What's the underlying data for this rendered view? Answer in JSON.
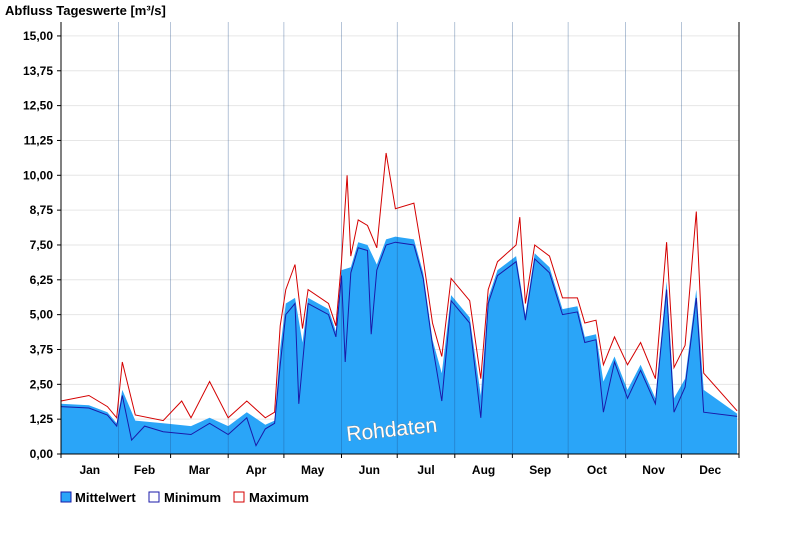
{
  "chart_data": {
    "type": "area",
    "title": "Abfluss Tageswerte [m³/s]",
    "watermark": "Rohdaten",
    "ylim": [
      0,
      15.5
    ],
    "y_ticks": [
      "0,00",
      "1,25",
      "2,50",
      "3,75",
      "5,00",
      "6,25",
      "7,50",
      "8,75",
      "10,00",
      "11,25",
      "12,50",
      "13,75",
      "15,00"
    ],
    "y_tick_values": [
      0,
      1.25,
      2.5,
      3.75,
      5.0,
      6.25,
      7.5,
      8.75,
      10.0,
      11.25,
      12.5,
      13.75,
      15.0
    ],
    "x_labels": [
      "Jan",
      "Feb",
      "Mar",
      "Apr",
      "May",
      "Jun",
      "Jul",
      "Aug",
      "Sep",
      "Oct",
      "Nov",
      "Dec"
    ],
    "days_in_year": 365,
    "colors": {
      "mittelwert_fill": "#2aa5f8",
      "minimum_line": "#1a1aa8",
      "maximum_line": "#d40000",
      "axis": "#000000",
      "grid": "#e6e6e6",
      "month_line": "#1f4f8a"
    },
    "series": [
      {
        "name": "Mittelwert",
        "values": [
          [
            0,
            1.8
          ],
          [
            15,
            1.75
          ],
          [
            25,
            1.5
          ],
          [
            30,
            1.1
          ],
          [
            33,
            2.3
          ],
          [
            40,
            1.2
          ],
          [
            55,
            1.1
          ],
          [
            70,
            1.0
          ],
          [
            80,
            1.3
          ],
          [
            90,
            1.0
          ],
          [
            100,
            1.5
          ],
          [
            110,
            1.05
          ],
          [
            115,
            1.2
          ],
          [
            118,
            3.8
          ],
          [
            121,
            5.4
          ],
          [
            126,
            5.6
          ],
          [
            130,
            4.0
          ],
          [
            133,
            5.6
          ],
          [
            144,
            5.2
          ],
          [
            148,
            4.4
          ],
          [
            151,
            6.6
          ],
          [
            156,
            6.7
          ],
          [
            160,
            7.6
          ],
          [
            165,
            7.5
          ],
          [
            170,
            6.8
          ],
          [
            175,
            7.7
          ],
          [
            180,
            7.8
          ],
          [
            190,
            7.7
          ],
          [
            195,
            6.5
          ],
          [
            200,
            4.1
          ],
          [
            205,
            2.9
          ],
          [
            210,
            5.7
          ],
          [
            220,
            4.9
          ],
          [
            226,
            2.1
          ],
          [
            230,
            5.6
          ],
          [
            235,
            6.6
          ],
          [
            245,
            7.1
          ],
          [
            250,
            5.0
          ],
          [
            255,
            7.2
          ],
          [
            263,
            6.7
          ],
          [
            270,
            5.2
          ],
          [
            278,
            5.3
          ],
          [
            282,
            4.2
          ],
          [
            288,
            4.3
          ],
          [
            292,
            2.6
          ],
          [
            298,
            3.5
          ],
          [
            305,
            2.3
          ],
          [
            312,
            3.2
          ],
          [
            320,
            2.0
          ],
          [
            326,
            6.2
          ],
          [
            330,
            2.0
          ],
          [
            336,
            2.7
          ],
          [
            342,
            5.9
          ],
          [
            346,
            2.3
          ],
          [
            364,
            1.45
          ]
        ]
      },
      {
        "name": "Minimum",
        "values": [
          [
            0,
            1.7
          ],
          [
            15,
            1.65
          ],
          [
            25,
            1.4
          ],
          [
            30,
            1.0
          ],
          [
            33,
            2.1
          ],
          [
            38,
            0.5
          ],
          [
            45,
            1.0
          ],
          [
            55,
            0.8
          ],
          [
            70,
            0.7
          ],
          [
            80,
            1.1
          ],
          [
            90,
            0.7
          ],
          [
            100,
            1.3
          ],
          [
            105,
            0.3
          ],
          [
            110,
            0.9
          ],
          [
            115,
            1.1
          ],
          [
            118,
            3.2
          ],
          [
            121,
            5.0
          ],
          [
            126,
            5.4
          ],
          [
            128,
            1.8
          ],
          [
            133,
            5.4
          ],
          [
            144,
            5.0
          ],
          [
            148,
            4.2
          ],
          [
            151,
            6.4
          ],
          [
            153,
            3.3
          ],
          [
            156,
            6.5
          ],
          [
            160,
            7.4
          ],
          [
            165,
            7.3
          ],
          [
            167,
            4.3
          ],
          [
            170,
            6.6
          ],
          [
            175,
            7.5
          ],
          [
            180,
            7.6
          ],
          [
            190,
            7.5
          ],
          [
            195,
            6.3
          ],
          [
            200,
            3.9
          ],
          [
            205,
            1.9
          ],
          [
            210,
            5.5
          ],
          [
            220,
            4.7
          ],
          [
            226,
            1.3
          ],
          [
            230,
            5.4
          ],
          [
            235,
            6.4
          ],
          [
            245,
            6.9
          ],
          [
            250,
            4.8
          ],
          [
            255,
            7.0
          ],
          [
            263,
            6.5
          ],
          [
            270,
            5.0
          ],
          [
            278,
            5.1
          ],
          [
            282,
            4.0
          ],
          [
            288,
            4.1
          ],
          [
            292,
            1.5
          ],
          [
            298,
            3.3
          ],
          [
            305,
            2.0
          ],
          [
            312,
            3.0
          ],
          [
            320,
            1.8
          ],
          [
            326,
            5.9
          ],
          [
            330,
            1.5
          ],
          [
            336,
            2.4
          ],
          [
            342,
            5.6
          ],
          [
            346,
            1.5
          ],
          [
            364,
            1.35
          ]
        ]
      },
      {
        "name": "Maximum",
        "values": [
          [
            0,
            1.9
          ],
          [
            15,
            2.1
          ],
          [
            25,
            1.7
          ],
          [
            30,
            1.3
          ],
          [
            33,
            3.3
          ],
          [
            40,
            1.4
          ],
          [
            55,
            1.2
          ],
          [
            65,
            1.9
          ],
          [
            70,
            1.3
          ],
          [
            80,
            2.6
          ],
          [
            90,
            1.3
          ],
          [
            100,
            1.9
          ],
          [
            110,
            1.3
          ],
          [
            115,
            1.5
          ],
          [
            118,
            4.6
          ],
          [
            121,
            5.9
          ],
          [
            126,
            6.8
          ],
          [
            130,
            4.5
          ],
          [
            133,
            5.9
          ],
          [
            144,
            5.4
          ],
          [
            148,
            4.6
          ],
          [
            151,
            6.9
          ],
          [
            154,
            10.0
          ],
          [
            156,
            7.1
          ],
          [
            160,
            8.4
          ],
          [
            165,
            8.2
          ],
          [
            170,
            7.4
          ],
          [
            175,
            10.8
          ],
          [
            180,
            8.8
          ],
          [
            190,
            9.0
          ],
          [
            195,
            7.0
          ],
          [
            200,
            4.7
          ],
          [
            205,
            3.5
          ],
          [
            210,
            6.3
          ],
          [
            220,
            5.5
          ],
          [
            226,
            2.7
          ],
          [
            230,
            5.9
          ],
          [
            235,
            6.9
          ],
          [
            245,
            7.5
          ],
          [
            247,
            8.5
          ],
          [
            250,
            5.4
          ],
          [
            255,
            7.5
          ],
          [
            263,
            7.1
          ],
          [
            270,
            5.6
          ],
          [
            278,
            5.6
          ],
          [
            282,
            4.7
          ],
          [
            288,
            4.8
          ],
          [
            292,
            3.2
          ],
          [
            298,
            4.2
          ],
          [
            305,
            3.2
          ],
          [
            312,
            4.0
          ],
          [
            320,
            2.7
          ],
          [
            326,
            7.6
          ],
          [
            330,
            3.1
          ],
          [
            336,
            3.9
          ],
          [
            342,
            8.7
          ],
          [
            346,
            2.9
          ],
          [
            364,
            1.55
          ]
        ]
      }
    ]
  }
}
